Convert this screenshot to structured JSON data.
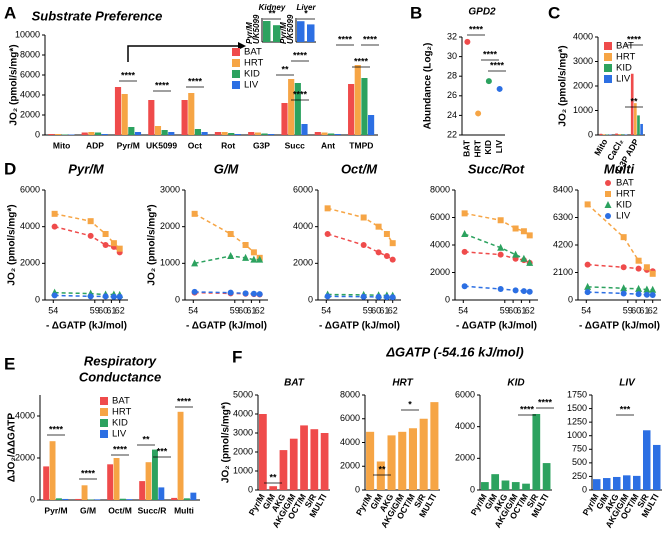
{
  "chart_data": [
    {
      "type": "bar",
      "label": "A",
      "title": "Substrate Preference",
      "ylabel": "JO₂ (pmol/s/mg*)",
      "categories": [
        "Mito",
        "ADP",
        "Pyr/M",
        "UK5099",
        "Oct",
        "Rot",
        "G3P",
        "Succ",
        "Ant",
        "TMPD"
      ],
      "series": [
        {
          "name": "BAT",
          "color": "#ef4b4b",
          "values": [
            100,
            250,
            4800,
            3500,
            3500,
            300,
            300,
            3200,
            300,
            5100
          ]
        },
        {
          "name": "HRT",
          "color": "#f6a545",
          "values": [
            100,
            300,
            4100,
            900,
            4200,
            300,
            250,
            5600,
            250,
            7000
          ]
        },
        {
          "name": "KID",
          "color": "#2ca25f",
          "values": [
            50,
            250,
            800,
            500,
            600,
            200,
            150,
            5200,
            150,
            5700
          ]
        },
        {
          "name": "LIV",
          "color": "#2c6fe3",
          "values": [
            50,
            100,
            300,
            300,
            300,
            100,
            100,
            1100,
            100,
            2000
          ]
        }
      ],
      "ylim": [
        0,
        10000
      ],
      "yticks": [
        0,
        2000,
        4000,
        6000,
        8000,
        10000
      ],
      "legend": "upper center",
      "annotations": [
        "****",
        "****",
        "****",
        "**",
        "****",
        "****",
        "****",
        "****",
        "****"
      ]
    },
    {
      "type": "bar",
      "title": "Kidney",
      "categories": [
        "Pyr/M",
        "UK5099"
      ],
      "series": [
        {
          "color": "#2ca25f",
          "values": [
            700,
            560
          ]
        }
      ],
      "ylim": [
        0,
        800
      ],
      "annotations": [
        "**"
      ]
    },
    {
      "type": "bar",
      "title": "Liver",
      "categories": [
        "Pyr/M",
        "UK5099"
      ],
      "series": [
        {
          "color": "#2c6fe3",
          "values": [
            260,
            220
          ]
        }
      ],
      "ylim": [
        0,
        300
      ],
      "annotations": [
        "*"
      ]
    },
    {
      "type": "dot",
      "label": "B",
      "title": "GPD2",
      "ylabel": "Abundance (Log₂)",
      "categories": [
        "BAT",
        "HRT",
        "KID",
        "LIV"
      ],
      "values": [
        31.5,
        24.2,
        27.5,
        26.7
      ],
      "colors": [
        "#ef4b4b",
        "#f6a545",
        "#2ca25f",
        "#2c6fe3"
      ],
      "ylim": [
        22,
        32
      ],
      "yticks": [
        22,
        24,
        26,
        28,
        30,
        32
      ],
      "annotations": [
        "****",
        "****",
        "****"
      ]
    },
    {
      "type": "bar",
      "label": "C",
      "ylabel": "JO₂ (pmol/s/mg*)",
      "categories": [
        "Mito",
        "CaCl₂",
        "G3P ADP"
      ],
      "series": [
        {
          "name": "BAT",
          "color": "#ef4b4b",
          "values": [
            50,
            60,
            2500
          ]
        },
        {
          "name": "HRT",
          "color": "#f6a545",
          "values": [
            30,
            40,
            1300
          ]
        },
        {
          "name": "KID",
          "color": "#2ca25f",
          "values": [
            20,
            30,
            800
          ]
        },
        {
          "name": "LIV",
          "color": "#2c6fe3",
          "values": [
            20,
            20,
            450
          ]
        }
      ],
      "ylim": [
        0,
        4000
      ],
      "yticks": [
        0,
        1000,
        2000,
        3000,
        4000
      ],
      "legend": "upper right",
      "annotations": [
        "****",
        "**"
      ]
    },
    {
      "type": "line",
      "label": "D",
      "title": "Pyr/M",
      "ylabel": "JO₂ (pmol/s/mg*)",
      "xlabel": "- ΔGATP (kJ/mol)",
      "x": [
        54.16,
        58.5,
        60.3,
        61.3,
        62
      ],
      "xlim": [
        53,
        63
      ],
      "xticks": [
        54,
        59,
        60,
        61,
        62
      ],
      "ylim": [
        0,
        6000
      ],
      "yticks": [
        0,
        2000,
        4000,
        6000
      ],
      "series": [
        {
          "color": "#ef4b4b",
          "marker": "circle",
          "values": [
            4000,
            3500,
            3000,
            2900,
            2600
          ]
        },
        {
          "color": "#f6a545",
          "marker": "square",
          "values": [
            4700,
            4300,
            3600,
            3100,
            2800
          ]
        },
        {
          "color": "#2ca25f",
          "marker": "triangle",
          "values": [
            400,
            350,
            300,
            300,
            280
          ]
        },
        {
          "color": "#2c6fe3",
          "marker": "circle",
          "values": [
            250,
            200,
            200,
            180,
            180
          ]
        }
      ]
    },
    {
      "type": "line",
      "title": "G/M",
      "ylabel": "JO₂ (pmol/s/mg*)",
      "xlabel": "- ΔGATP (kJ/mol)",
      "x": [
        54.16,
        58.5,
        60.3,
        61.3,
        62
      ],
      "xlim": [
        53,
        63
      ],
      "xticks": [
        54,
        59,
        60,
        61,
        62
      ],
      "ylim": [
        0,
        3000
      ],
      "yticks": [
        0,
        1000,
        2000,
        3000
      ],
      "series": [
        {
          "color": "#ef4b4b",
          "marker": "circle",
          "values": [
            200,
            180,
            170,
            160,
            150
          ]
        },
        {
          "color": "#f6a545",
          "marker": "square",
          "values": [
            2350,
            1800,
            1500,
            1300,
            1150
          ]
        },
        {
          "color": "#2ca25f",
          "marker": "triangle",
          "values": [
            1000,
            1200,
            1150,
            1100,
            1100
          ]
        },
        {
          "color": "#2c6fe3",
          "marker": "circle",
          "values": [
            220,
            200,
            180,
            170,
            160
          ]
        }
      ]
    },
    {
      "type": "line",
      "title": "Oct/M",
      "xlabel": "- ΔGATP (kJ/mol)",
      "x": [
        54.16,
        58.5,
        60.3,
        61.3,
        62
      ],
      "xlim": [
        53,
        63
      ],
      "xticks": [
        54,
        59,
        60,
        61,
        62
      ],
      "ylim": [
        0,
        6000
      ],
      "yticks": [
        0,
        2000,
        4000,
        6000
      ],
      "series": [
        {
          "color": "#ef4b4b",
          "marker": "circle",
          "values": [
            3600,
            3000,
            2600,
            2400,
            2200
          ]
        },
        {
          "color": "#f6a545",
          "marker": "square",
          "values": [
            5000,
            4500,
            4000,
            3600,
            3100
          ]
        },
        {
          "color": "#2ca25f",
          "marker": "triangle",
          "values": [
            300,
            280,
            260,
            250,
            240
          ]
        },
        {
          "color": "#2c6fe3",
          "marker": "circle",
          "values": [
            200,
            180,
            170,
            160,
            150
          ]
        }
      ]
    },
    {
      "type": "line",
      "title": "Succ/Rot",
      "xlabel": "- ΔGATP (kJ/mol)",
      "x": [
        54.16,
        58.5,
        60.3,
        61.3,
        62
      ],
      "xlim": [
        53,
        63
      ],
      "xticks": [
        54,
        59,
        60,
        61,
        62
      ],
      "ylim": [
        0,
        8000
      ],
      "yticks": [
        0,
        2000,
        4000,
        6000,
        8000
      ],
      "series": [
        {
          "color": "#ef4b4b",
          "marker": "circle",
          "values": [
            3500,
            3300,
            3000,
            2900,
            2700
          ]
        },
        {
          "color": "#f6a545",
          "marker": "square",
          "values": [
            6300,
            5800,
            5200,
            5000,
            4700
          ]
        },
        {
          "color": "#2ca25f",
          "marker": "triangle",
          "values": [
            4800,
            3800,
            3300,
            3000,
            2700
          ]
        },
        {
          "color": "#2c6fe3",
          "marker": "circle",
          "values": [
            1000,
            800,
            700,
            650,
            600
          ]
        }
      ]
    },
    {
      "type": "line",
      "title": "Multi",
      "xlabel": "- ΔGATP (kJ/mol)",
      "x": [
        54.16,
        58.5,
        60.3,
        61.3,
        62
      ],
      "xlim": [
        53,
        63
      ],
      "xticks": [
        54,
        59,
        60,
        61,
        62
      ],
      "ylim": [
        0,
        8400
      ],
      "yticks": [
        0,
        2100,
        4200,
        6300,
        8400
      ],
      "legend": "upper right",
      "series": [
        {
          "name": "BAT",
          "color": "#ef4b4b",
          "marker": "circle",
          "values": [
            2700,
            2500,
            2400,
            2300,
            2200
          ]
        },
        {
          "name": "HRT",
          "color": "#f6a545",
          "marker": "square",
          "values": [
            7300,
            4800,
            3000,
            2500,
            2000
          ]
        },
        {
          "name": "KID",
          "color": "#2ca25f",
          "marker": "triangle",
          "values": [
            1000,
            900,
            850,
            800,
            780
          ]
        },
        {
          "name": "LIV",
          "color": "#2c6fe3",
          "marker": "circle",
          "values": [
            600,
            500,
            450,
            400,
            380
          ]
        }
      ]
    },
    {
      "type": "bar",
      "label": "E",
      "title_lines": [
        "Respiratory",
        "Conductance"
      ],
      "ylabel": "ΔJO₂/ΔΔGATP",
      "categories": [
        "Pyr/M",
        "G/M",
        "Oct/M",
        "Succ/R",
        "Multi"
      ],
      "series": [
        {
          "name": "BAT",
          "color": "#ef4b4b",
          "values": [
            1600,
            50,
            1700,
            900,
            100
          ]
        },
        {
          "name": "HRT",
          "color": "#f6a545",
          "values": [
            2800,
            700,
            2000,
            1800,
            4200
          ]
        },
        {
          "name": "KID",
          "color": "#2ca25f",
          "values": [
            80,
            20,
            60,
            2400,
            80
          ]
        },
        {
          "name": "LIV",
          "color": "#2c6fe3",
          "values": [
            50,
            30,
            40,
            600,
            350
          ]
        }
      ],
      "ylim": [
        0,
        5000
      ],
      "yticks": [
        0,
        2000,
        4000
      ],
      "legend": "upper left",
      "annotations": [
        "****",
        "****",
        "****",
        "**",
        "***",
        "****"
      ]
    },
    {
      "type": "bar",
      "label": "F",
      "group_title": "ΔGATP (-54.16 kJ/mol)",
      "title": "BAT",
      "ylabel": "JO₂ (pmol/s/mg*)",
      "categories": [
        "Pyr/M",
        "G/M",
        "AKG",
        "AKG/G/M",
        "OCT/M",
        "S/R",
        "MULTI"
      ],
      "series": [
        {
          "color": "#ef4b4b",
          "values": [
            4000,
            200,
            2100,
            2700,
            3400,
            3200,
            3000
          ]
        }
      ],
      "ylim": [
        0,
        5000
      ],
      "yticks": [
        0,
        1000,
        2000,
        3000,
        4000,
        5000
      ],
      "annotations": [
        "**"
      ]
    },
    {
      "type": "bar",
      "title": "HRT",
      "categories": [
        "Pyr/M",
        "G/M",
        "AKG",
        "AKG/G/M",
        "OCT/M",
        "S/R",
        "MULTI"
      ],
      "series": [
        {
          "color": "#f6a545",
          "values": [
            4900,
            2400,
            4600,
            4900,
            5200,
            6000,
            7400
          ]
        }
      ],
      "ylim": [
        0,
        8000
      ],
      "yticks": [
        0,
        2000,
        4000,
        6000,
        8000
      ],
      "annotations": [
        "**",
        "*"
      ]
    },
    {
      "type": "bar",
      "title": "KID",
      "categories": [
        "Pyr/M",
        "G/M",
        "AKG",
        "AKG/G/M",
        "OCT/M",
        "S/R",
        "MULTI"
      ],
      "series": [
        {
          "color": "#2ca25f",
          "values": [
            500,
            1000,
            600,
            500,
            400,
            4800,
            1700
          ]
        }
      ],
      "ylim": [
        0,
        6000
      ],
      "yticks": [
        0,
        2000,
        4000,
        6000
      ],
      "annotations": [
        "****",
        "****"
      ]
    },
    {
      "type": "bar",
      "title": "LIV",
      "categories": [
        "Pyr/M",
        "G/M",
        "AKG",
        "AKG/G/M",
        "OCT/M",
        "S/R",
        "MULTI"
      ],
      "series": [
        {
          "color": "#2c6fe3",
          "values": [
            200,
            220,
            240,
            270,
            260,
            1100,
            830
          ]
        }
      ],
      "ylim": [
        0,
        1750
      ],
      "yticks": [
        0,
        250,
        500,
        750,
        1000,
        1250,
        1500,
        1750
      ],
      "annotations": [
        "***"
      ]
    }
  ]
}
